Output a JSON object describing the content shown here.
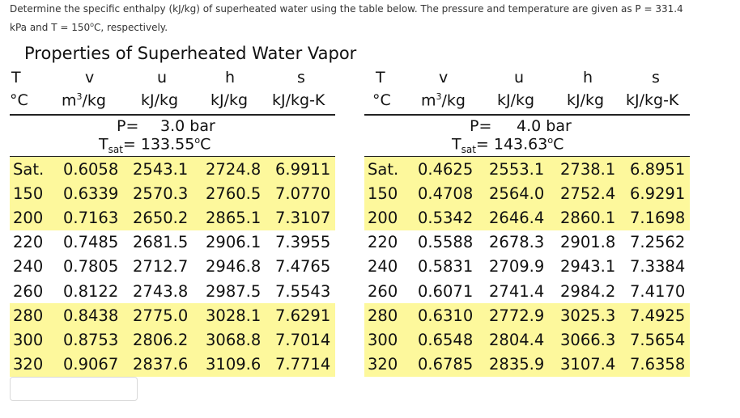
{
  "question": {
    "text_1": "Determine the specific enthalpy (kJ/kg) of superheated water using the table below. The pressure and temperature are given as P = 331.4",
    "text_2a": "kPa and T = 150",
    "degree": "o",
    "text_2b": "C, respectively."
  },
  "table_title": "Properties of Superheated Water Vapor",
  "headers": {
    "symbols": [
      "T",
      "v",
      "u",
      "h",
      "s"
    ],
    "units": [
      "°C",
      "m",
      "/kg",
      "kJ/kg",
      "kJ/kg",
      "kJ/kg-K"
    ],
    "cube": "3"
  },
  "left": {
    "p_label": "P=",
    "p_value": "3.0 bar",
    "tsat_T": "T",
    "tsat_sub": "sat",
    "tsat_value": "= 133.55",
    "tsat_deg": "o",
    "tsat_unit": "C",
    "rows": [
      [
        "Sat.",
        "0.6058",
        "2543.1",
        "2724.8",
        "6.9911"
      ],
      [
        "150",
        "0.6339",
        "2570.3",
        "2760.5",
        "7.0770"
      ],
      [
        "200",
        "0.7163",
        "2650.2",
        "2865.1",
        "7.3107"
      ],
      [
        "220",
        "0.7485",
        "2681.5",
        "2906.1",
        "7.3955"
      ],
      [
        "240",
        "0.7805",
        "2712.7",
        "2946.8",
        "7.4765"
      ],
      [
        "260",
        "0.8122",
        "2743.8",
        "2987.5",
        "7.5543"
      ],
      [
        "280",
        "0.8438",
        "2775.0",
        "3028.1",
        "7.6291"
      ],
      [
        "300",
        "0.8753",
        "2806.2",
        "3068.8",
        "7.7014"
      ],
      [
        "320",
        "0.9067",
        "2837.6",
        "3109.6",
        "7.7714"
      ]
    ]
  },
  "right": {
    "p_label": "P=",
    "p_value": "4.0 bar",
    "tsat_T": "T",
    "tsat_sub": "sat",
    "tsat_value": "= 143.63",
    "tsat_deg": "o",
    "tsat_unit": "C",
    "rows": [
      [
        "Sat.",
        "0.4625",
        "2553.1",
        "2738.1",
        "6.8951"
      ],
      [
        "150",
        "0.4708",
        "2564.0",
        "2752.4",
        "6.9291"
      ],
      [
        "200",
        "0.5342",
        "2646.4",
        "2860.1",
        "7.1698"
      ],
      [
        "220",
        "0.5588",
        "2678.3",
        "2901.8",
        "7.2562"
      ],
      [
        "240",
        "0.5831",
        "2709.9",
        "2943.1",
        "7.3384"
      ],
      [
        "260",
        "0.6071",
        "2741.4",
        "2984.2",
        "7.4170"
      ],
      [
        "280",
        "0.6310",
        "2772.9",
        "3025.3",
        "7.4925"
      ],
      [
        "300",
        "0.6548",
        "2804.4",
        "3066.3",
        "7.5654"
      ],
      [
        "320",
        "0.6785",
        "2835.9",
        "3107.4",
        "7.6358"
      ]
    ]
  },
  "highlighted_rows": [
    0,
    1,
    2,
    6,
    7,
    8
  ],
  "colors": {
    "highlight": "#fdf89c",
    "text": "#111111"
  }
}
